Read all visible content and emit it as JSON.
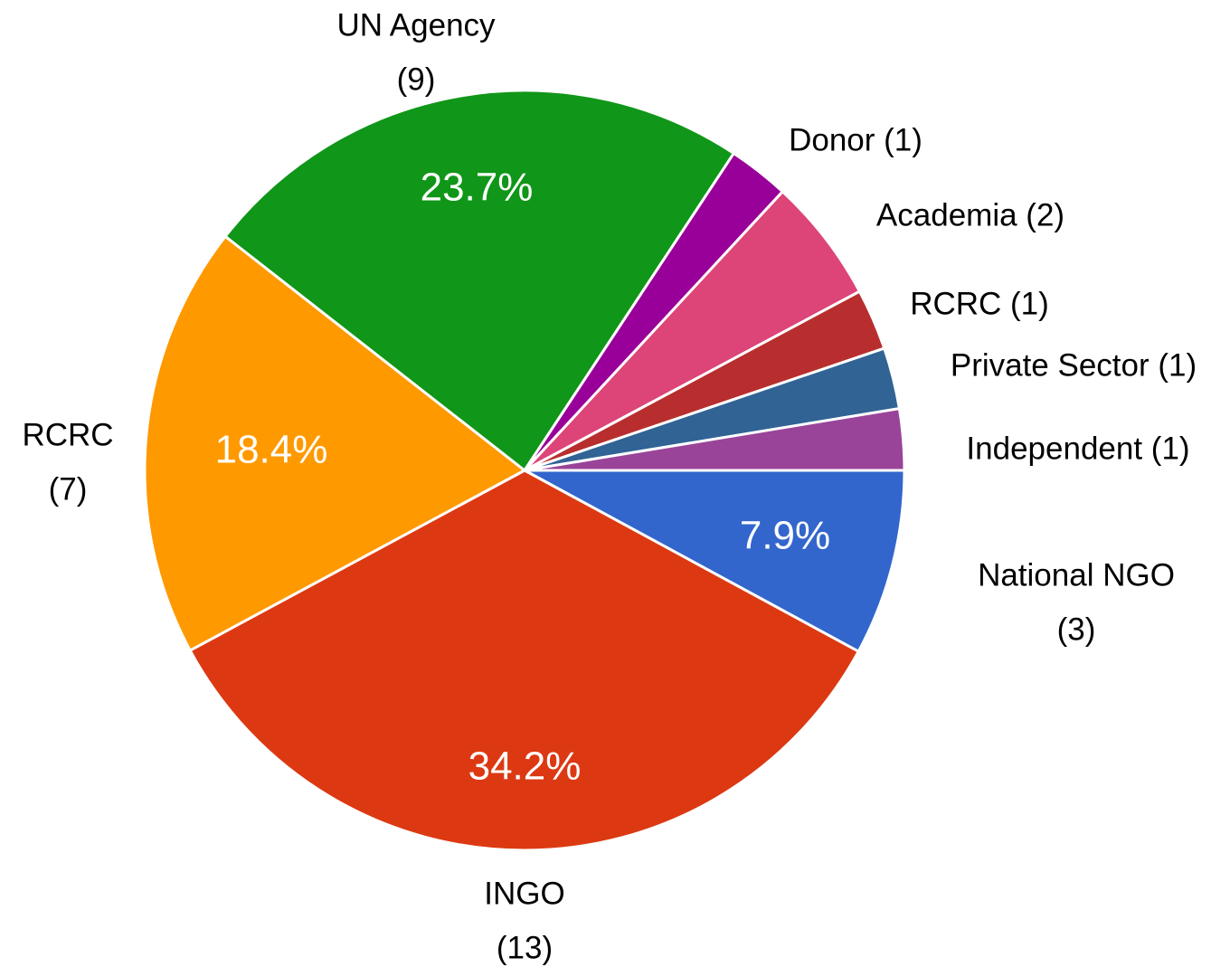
{
  "chart_data": {
    "type": "pie",
    "categories": [
      [
        "National NGO",
        "(3)"
      ],
      [
        "INGO",
        "(13)"
      ],
      [
        "RCRC",
        "(7)"
      ],
      [
        "UN Agency",
        "(9)"
      ],
      [
        "Donor (1)"
      ],
      [
        "Academia (2)"
      ],
      [
        "RCRC (1)"
      ],
      [
        "Private Sector (1)"
      ],
      [
        "Independent (1)"
      ]
    ],
    "values": [
      7.9,
      34.2,
      18.4,
      23.7,
      2.6,
      5.3,
      2.6,
      2.6,
      2.6
    ],
    "value_labels": [
      "7.9%",
      "34.2%",
      "18.4%",
      "23.7%",
      null,
      null,
      null,
      null,
      null
    ],
    "colors": [
      "#3366cc",
      "#dc3912",
      "#ff9900",
      "#109618",
      "#990099",
      "#dd4477",
      "#b82e2e",
      "#316395",
      "#994499"
    ]
  }
}
